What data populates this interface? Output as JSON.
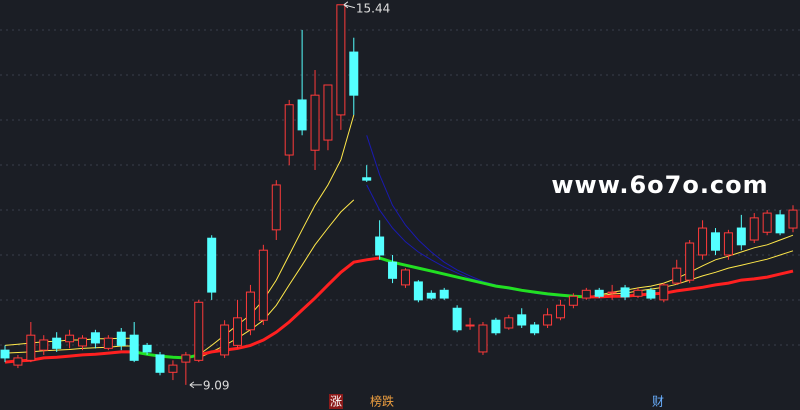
{
  "chart_data": {
    "type": "candlestick",
    "up_color": "#ff3a3a",
    "down_color": "#54ffff",
    "ylim": [
      8.67,
      15.52
    ],
    "open": [
      9.67,
      9.42,
      9.5,
      9.67,
      9.87,
      9.81,
      9.74,
      9.96,
      9.7,
      9.97,
      9.92,
      9.75,
      9.59,
      9.3,
      9.47,
      9.5,
      11.54,
      9.59,
      9.75,
      10.01,
      10.17,
      11.68,
      12.93,
      13.85,
      13.01,
      13.18,
      13.6,
      14.65,
      12.55,
      11.56,
      11.14,
      10.76,
      10.81,
      10.62,
      10.67,
      10.37,
      10.09,
      9.64,
      10.17,
      10.04,
      10.26,
      10.09,
      10.09,
      10.21,
      10.42,
      10.54,
      10.67,
      10.64,
      10.71,
      10.57,
      10.67,
      10.51,
      10.79,
      10.84,
      11.26,
      11.63,
      11.26,
      11.71,
      11.51,
      11.64,
      11.93,
      11.71
    ],
    "high": [
      9.75,
      9.59,
      10.14,
      9.92,
      9.97,
      10.01,
      9.92,
      10.01,
      9.92,
      10.04,
      10.14,
      9.79,
      9.64,
      9.5,
      9.64,
      10.51,
      11.59,
      10.17,
      10.51,
      10.76,
      11.43,
      12.51,
      13.85,
      15.02,
      14.35,
      14.1,
      15.44,
      14.89,
      12.76,
      11.84,
      11.26,
      11.04,
      10.84,
      10.67,
      10.71,
      10.42,
      10.21,
      10.14,
      10.21,
      10.26,
      10.37,
      10.14,
      10.37,
      10.51,
      10.62,
      10.71,
      10.71,
      10.76,
      10.76,
      10.71,
      10.71,
      10.79,
      11.18,
      11.51,
      11.84,
      11.71,
      11.68,
      11.93,
      11.96,
      12.01,
      12.01,
      12.09
    ],
    "low": [
      9.47,
      9.37,
      9.47,
      9.59,
      9.64,
      9.7,
      9.67,
      9.7,
      9.67,
      9.67,
      9.47,
      9.59,
      9.25,
      9.17,
      9.09,
      9.47,
      10.51,
      9.54,
      9.7,
      9.92,
      10.09,
      11.51,
      12.76,
      13.26,
      12.68,
      13.01,
      13.35,
      13.6,
      12.48,
      11.18,
      10.79,
      10.71,
      10.47,
      10.51,
      10.51,
      9.97,
      10.01,
      9.59,
      9.92,
      10.01,
      10.04,
      9.92,
      10.04,
      10.17,
      10.37,
      10.51,
      10.54,
      10.51,
      10.51,
      10.54,
      10.51,
      10.47,
      10.76,
      10.79,
      11.18,
      11.26,
      11.18,
      11.34,
      11.46,
      11.59,
      11.59,
      11.64
    ],
    "close": [
      9.54,
      9.54,
      9.92,
      9.84,
      9.7,
      9.92,
      9.87,
      9.79,
      9.87,
      9.75,
      9.5,
      9.64,
      9.3,
      9.42,
      9.59,
      10.47,
      10.64,
      10.09,
      10.21,
      10.64,
      11.34,
      12.43,
      13.77,
      13.35,
      13.93,
      14.1,
      15.44,
      13.93,
      12.51,
      11.26,
      10.87,
      11.01,
      10.51,
      10.54,
      10.54,
      10.01,
      10.09,
      10.09,
      9.96,
      10.21,
      10.09,
      9.96,
      10.26,
      10.42,
      10.57,
      10.67,
      10.57,
      10.64,
      10.56,
      10.67,
      10.54,
      10.76,
      11.04,
      11.46,
      11.71,
      11.34,
      11.63,
      11.43,
      11.88,
      11.96,
      11.63,
      12.01
    ],
    "lines": [
      {
        "color": "#ffe84a",
        "values": [
          9.75,
          9.77,
          9.79,
          9.81,
          9.82,
          9.84,
          9.84,
          9.86,
          9.86,
          9.87,
          9.87,
          null,
          null,
          null,
          null,
          9.59,
          9.75,
          9.92,
          10.09,
          10.26,
          10.51,
          10.84,
          11.26,
          11.68,
          12.09,
          12.43,
          12.85,
          13.6,
          null,
          null,
          null,
          null,
          null,
          null,
          null,
          null,
          null,
          null,
          null,
          null,
          null,
          null,
          null,
          null,
          null,
          10.56,
          10.59,
          10.64,
          10.67,
          10.71,
          10.74,
          10.79,
          10.87,
          10.97,
          11.08,
          11.18,
          11.24,
          11.31,
          11.38,
          11.43,
          11.51,
          11.59
        ]
      },
      {
        "color": "#ffe84a",
        "values": [
          9.62,
          9.63,
          9.64,
          9.66,
          9.67,
          9.68,
          9.7,
          9.71,
          9.72,
          9.74,
          9.74,
          null,
          null,
          null,
          null,
          9.54,
          9.64,
          9.75,
          9.87,
          10.01,
          10.17,
          10.42,
          10.76,
          11.09,
          11.43,
          11.71,
          11.98,
          12.18,
          null,
          null,
          null,
          null,
          null,
          null,
          null,
          null,
          null,
          null,
          null,
          null,
          null,
          null,
          null,
          null,
          null,
          10.56,
          10.57,
          10.61,
          10.62,
          10.66,
          10.69,
          10.72,
          10.77,
          10.84,
          10.91,
          10.97,
          11.04,
          11.09,
          11.14,
          11.19,
          11.26,
          11.33
        ]
      },
      {
        "color": "#1a1ab0",
        "values": [
          null,
          null,
          null,
          null,
          null,
          null,
          null,
          null,
          null,
          null,
          null,
          null,
          null,
          null,
          null,
          null,
          null,
          null,
          null,
          null,
          null,
          null,
          null,
          null,
          null,
          null,
          null,
          null,
          13.26,
          12.6,
          12.09,
          11.76,
          11.51,
          11.31,
          11.14,
          11.01,
          10.91,
          10.82,
          10.76,
          10.71,
          10.67,
          10.64,
          10.61,
          10.59,
          10.57,
          10.56,
          null,
          null,
          null,
          null,
          null,
          null,
          null,
          null,
          null,
          null,
          null,
          null,
          null,
          null,
          null,
          null
        ]
      },
      {
        "color": "#1a1ab0",
        "values": [
          null,
          null,
          null,
          null,
          null,
          null,
          null,
          null,
          null,
          null,
          null,
          null,
          null,
          null,
          null,
          null,
          null,
          null,
          null,
          null,
          null,
          null,
          null,
          null,
          null,
          null,
          null,
          null,
          12.43,
          12.01,
          11.71,
          11.48,
          11.31,
          11.18,
          11.06,
          10.96,
          10.87,
          10.81,
          10.74,
          10.69,
          10.66,
          10.62,
          10.59,
          10.57,
          10.57,
          10.56,
          null,
          null,
          null,
          null,
          null,
          null,
          null,
          null,
          null,
          null,
          null,
          null,
          null,
          null,
          null,
          null
        ]
      },
      {
        "color": "#ff2020",
        "width": 3,
        "values": [
          9.47,
          9.49,
          9.5,
          9.54,
          9.55,
          9.57,
          9.59,
          9.6,
          9.62,
          9.64,
          9.64,
          null,
          null,
          null,
          null,
          9.59,
          9.64,
          9.67,
          9.7,
          9.75,
          9.84,
          9.97,
          10.14,
          10.34,
          10.54,
          10.76,
          10.97,
          11.14,
          11.18,
          11.21,
          null,
          null,
          null,
          null,
          null,
          null,
          null,
          null,
          null,
          null,
          null,
          null,
          null,
          null,
          null,
          10.56,
          10.56,
          10.57,
          10.57,
          10.59,
          10.61,
          10.62,
          10.66,
          10.69,
          10.72,
          10.76,
          10.79,
          10.84,
          10.86,
          10.89,
          10.94,
          10.99
        ]
      },
      {
        "color": "#22e022",
        "width": 3,
        "values": [
          null,
          null,
          null,
          null,
          null,
          null,
          null,
          null,
          null,
          null,
          9.64,
          9.6,
          9.57,
          9.55,
          9.54,
          9.59,
          null,
          null,
          null,
          null,
          null,
          null,
          null,
          null,
          null,
          null,
          null,
          null,
          null,
          11.21,
          11.14,
          11.09,
          11.04,
          10.99,
          10.94,
          10.89,
          10.84,
          10.79,
          10.74,
          10.71,
          10.67,
          10.64,
          10.61,
          10.59,
          10.57,
          10.56,
          null,
          null,
          null,
          null,
          null,
          null,
          null,
          null,
          null,
          null,
          null,
          null,
          null,
          null,
          null,
          null
        ]
      }
    ],
    "high_label": 15.44,
    "low_label": 9.09,
    "watermark": "www.6o7o.com",
    "markers": [
      "涨",
      "榜跌",
      "财"
    ]
  }
}
